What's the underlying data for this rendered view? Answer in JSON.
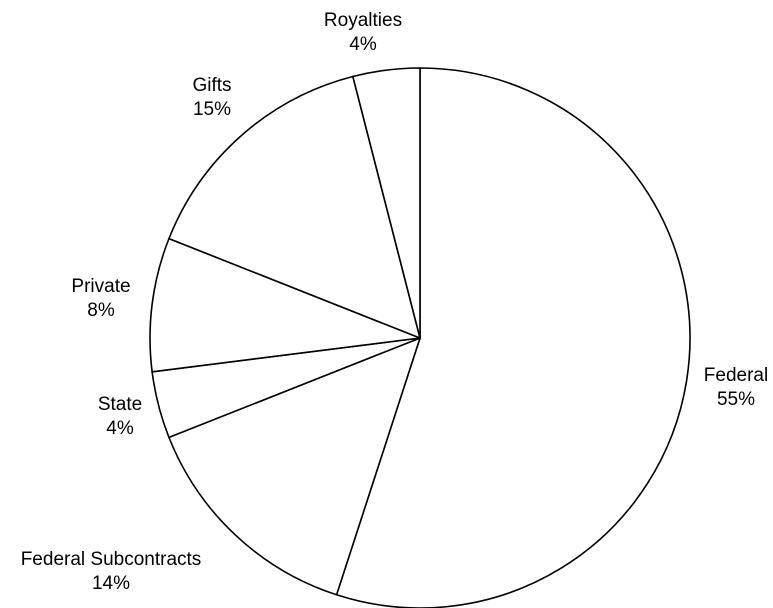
{
  "chart_data": {
    "type": "pie",
    "slices": [
      {
        "label": "Federal",
        "value": 55,
        "value_label": "55%"
      },
      {
        "label": "Federal Subcontracts",
        "value": 14,
        "value_label": "14%"
      },
      {
        "label": "State",
        "value": 4,
        "value_label": "4%"
      },
      {
        "label": "Private",
        "value": 8,
        "value_label": "8%"
      },
      {
        "label": "Gifts",
        "value": 15,
        "value_label": "15%"
      },
      {
        "label": "Royalties",
        "value": 4,
        "value_label": "4%"
      }
    ],
    "start_angle": "top",
    "direction": "clockwise",
    "legend": "none",
    "colors": {
      "fill": "#ffffff",
      "stroke": "#000000"
    }
  }
}
